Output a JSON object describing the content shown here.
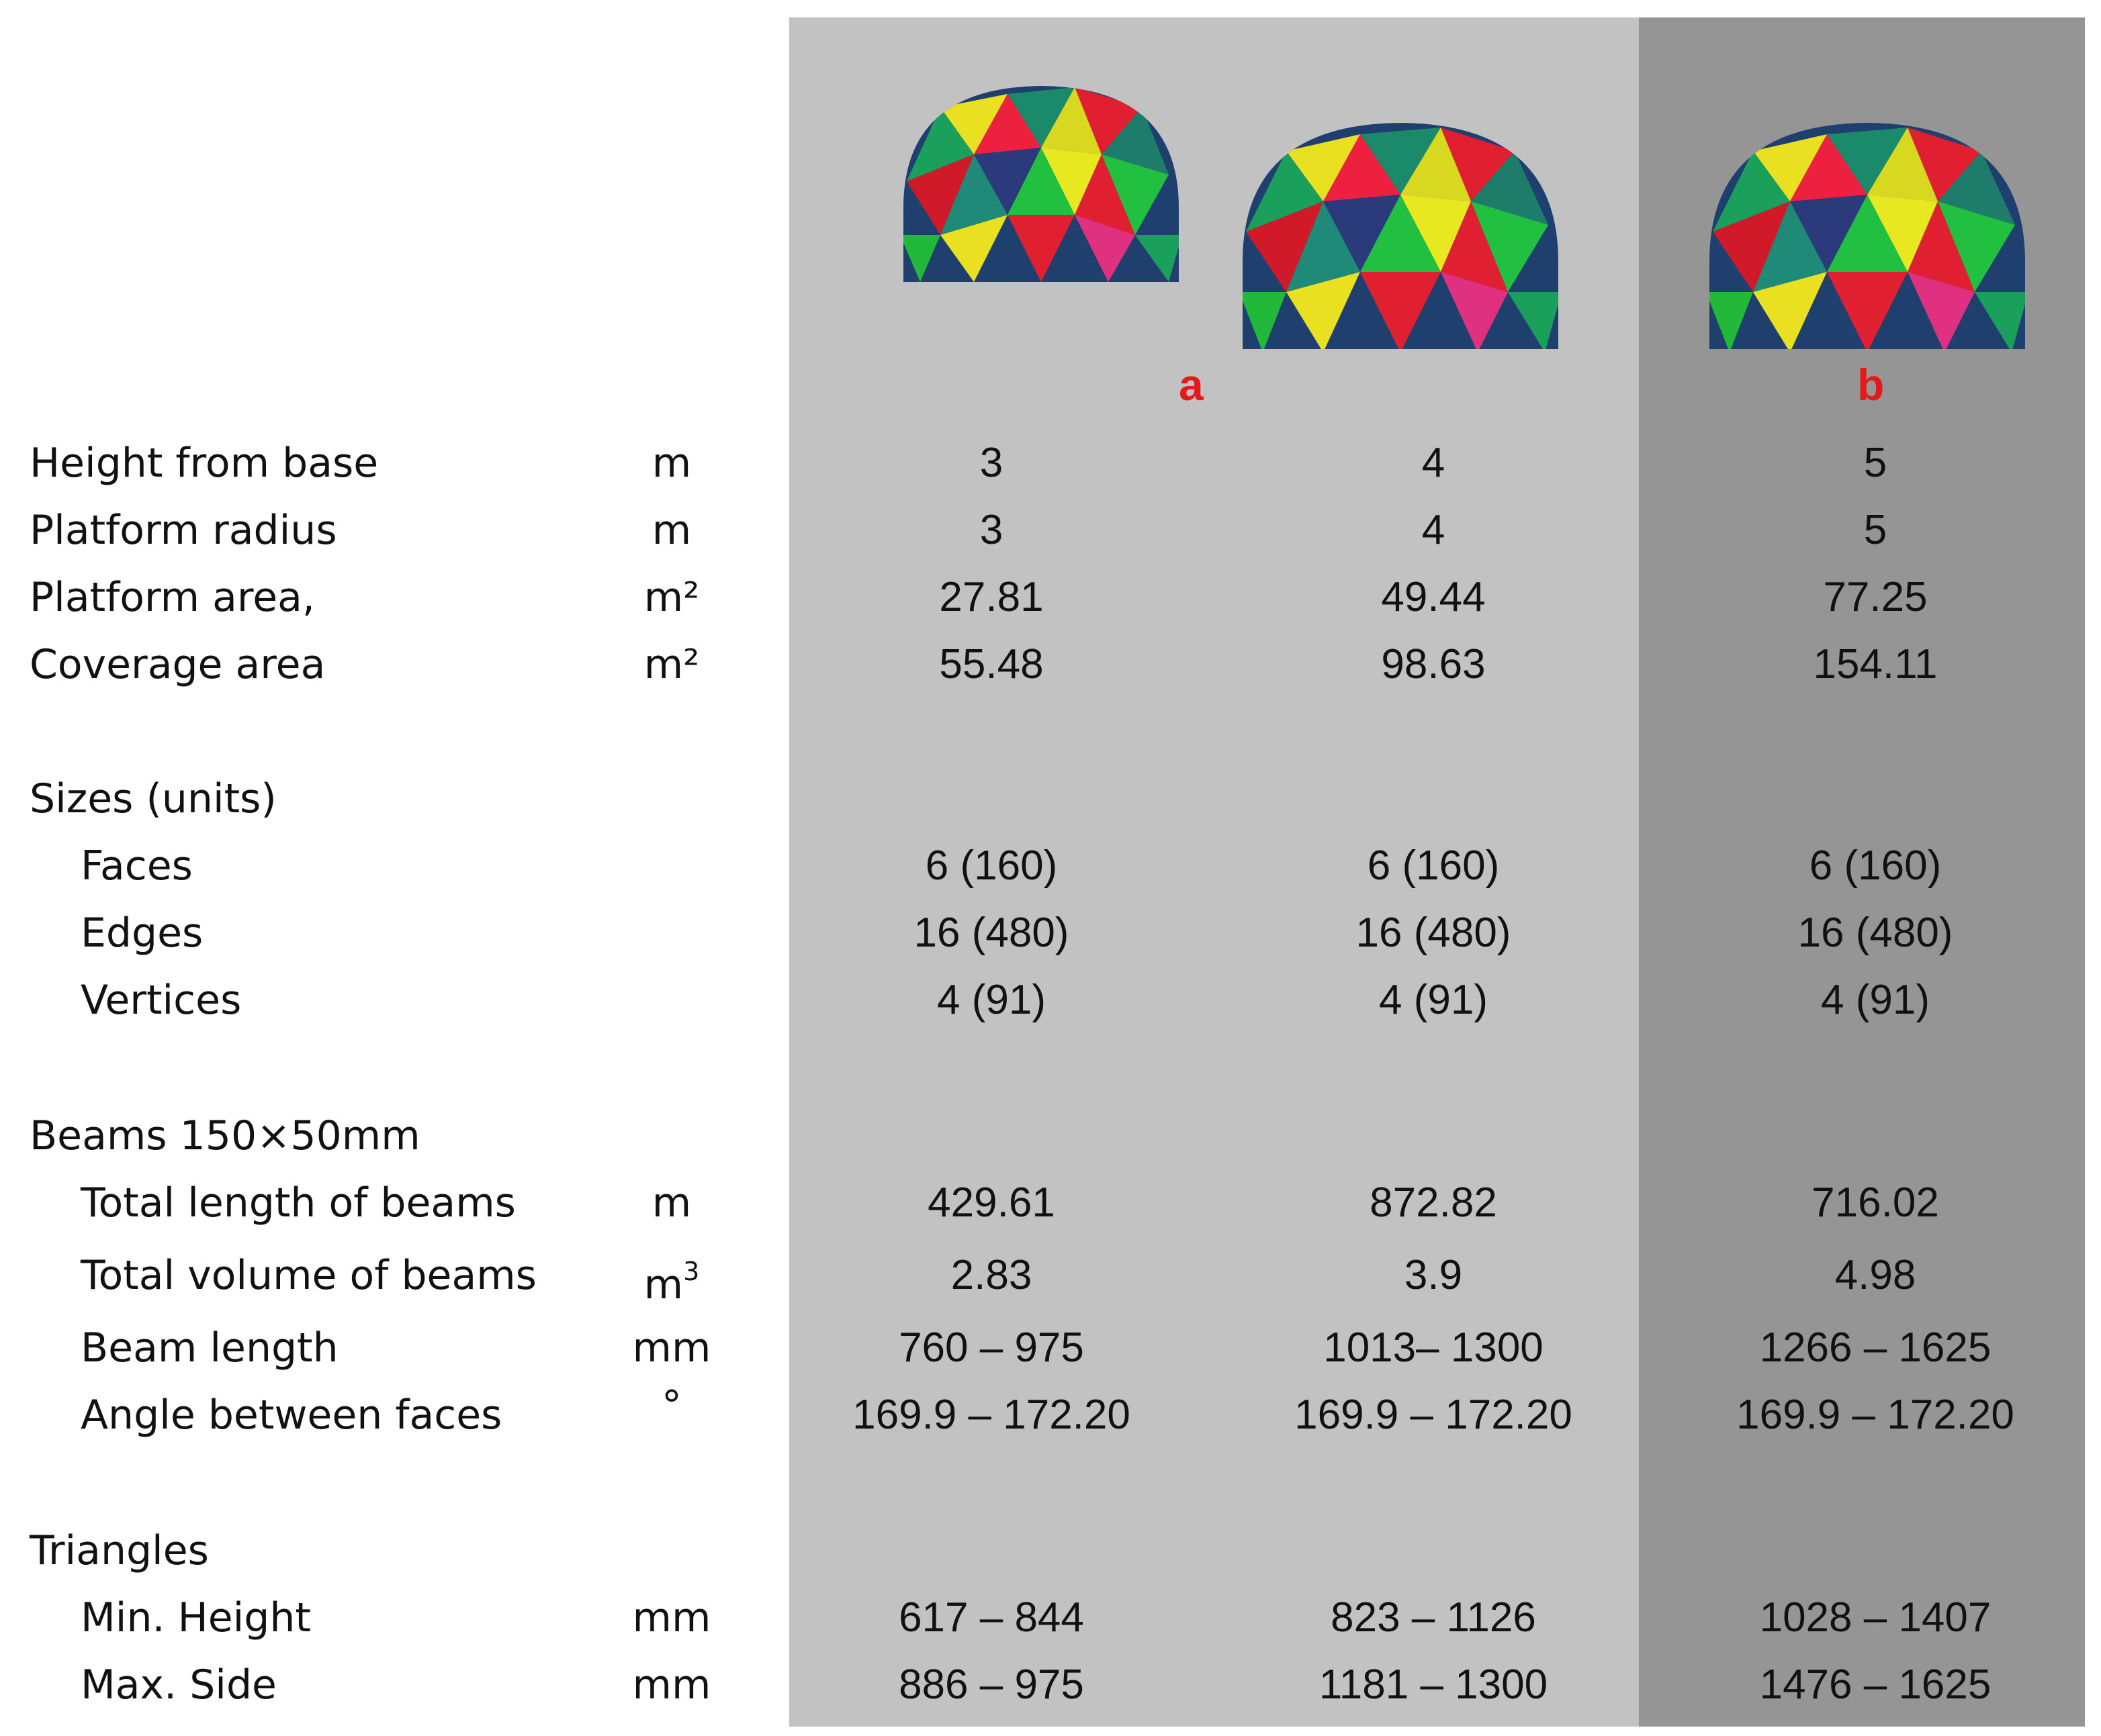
{
  "columns": {
    "a_label": "a",
    "b_label": "b",
    "bg_a_color": "#c2c2c2",
    "bg_b_color": "#959595",
    "tag_color": "#e21a1a"
  },
  "domes": [
    {
      "name": "dome-3m",
      "icon": "geodesic-dome-icon"
    },
    {
      "name": "dome-4m",
      "icon": "geodesic-dome-icon"
    },
    {
      "name": "dome-5m",
      "icon": "geodesic-dome-icon"
    }
  ],
  "rows": {
    "height": {
      "label": "Height from base",
      "unit": "m",
      "v1": "3",
      "v2": "4",
      "v3": "5"
    },
    "radius": {
      "label": "Platform radius",
      "unit": "m",
      "v1": "3",
      "v2": "4",
      "v3": "5"
    },
    "platform_area": {
      "label": "Platform area,",
      "unit": "m²",
      "v1": "27.81",
      "v2": "49.44",
      "v3": "77.25"
    },
    "coverage_area": {
      "label": "Coverage area",
      "unit": "m²",
      "v1": "55.48",
      "v2": "98.63",
      "v3": "154.11"
    },
    "sizes": {
      "label": "Sizes (units)"
    },
    "faces": {
      "label": "Faces",
      "v1": "6 (160)",
      "v2": "6 (160)",
      "v3": "6 (160)"
    },
    "edges": {
      "label": "Edges",
      "v1": "16 (480)",
      "v2": "16 (480)",
      "v3": "16 (480)"
    },
    "vertices": {
      "label": "Vertices",
      "v1": "4 (91)",
      "v2": "4 (91)",
      "v3": "4 (91)"
    },
    "beams": {
      "label": "Beams 150×50mm"
    },
    "total_length": {
      "label": "Total length of beams",
      "unit": "m",
      "v1": "429.61",
      "v2": "872.82",
      "v3": "716.02"
    },
    "total_volume": {
      "label": "Total volume of beams",
      "unit_base": "m",
      "unit_sup": "3",
      "v1": "2.83",
      "v2": "3.9",
      "v3": "4.98"
    },
    "beam_length": {
      "label": "Beam length",
      "unit": "mm",
      "v1": "760 – 975",
      "v2": "1013– 1300",
      "v3": "1266 – 1625"
    },
    "angle": {
      "label": "Angle between faces",
      "unit": "°",
      "v1": "169.9 – 172.20",
      "v2": "169.9 – 172.20",
      "v3": "169.9 – 172.20"
    },
    "triangles": {
      "label": "Triangles"
    },
    "min_height": {
      "label": "Min. Height",
      "unit": "mm",
      "v1": "617 – 844",
      "v2": "823 – 1126",
      "v3": "1028 – 1407"
    },
    "max_side": {
      "label": "Max. Side",
      "unit": "mm",
      "v1": "886 – 975",
      "v2": "1181 – 1300",
      "v3": "1476 – 1625"
    }
  }
}
